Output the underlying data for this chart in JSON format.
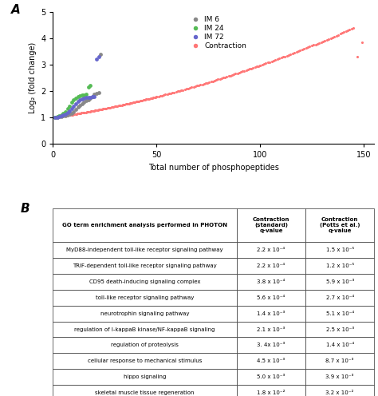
{
  "title_a": "A",
  "title_b": "B",
  "xlabel": "Total number of phosphopeptides",
  "ylabel": "Log₂ (fold change)",
  "xlim": [
    0,
    155
  ],
  "ylim": [
    0,
    5
  ],
  "xticks": [
    0,
    50,
    100,
    150
  ],
  "yticks": [
    0,
    1,
    2,
    3,
    4,
    5
  ],
  "colors": {
    "IM6": "#888888",
    "IM24": "#55bb55",
    "IM72": "#6666cc",
    "Contraction": "#ff7777"
  },
  "IM6_x": [
    1,
    2,
    3,
    4,
    5,
    6,
    7,
    8,
    9,
    10,
    11,
    12,
    13,
    14,
    15,
    16,
    17,
    18,
    19,
    20,
    21,
    22,
    23
  ],
  "IM6_y": [
    1.0,
    1.01,
    1.02,
    1.03,
    1.05,
    1.07,
    1.09,
    1.12,
    1.16,
    1.22,
    1.3,
    1.38,
    1.45,
    1.52,
    1.58,
    1.63,
    1.68,
    1.73,
    1.8,
    1.88,
    1.92,
    1.95,
    3.4
  ],
  "IM24_x": [
    1,
    2,
    3,
    4,
    5,
    6,
    7,
    8,
    9,
    10,
    11,
    12,
    13,
    14,
    15,
    16,
    17,
    18
  ],
  "IM24_y": [
    1.0,
    1.02,
    1.05,
    1.09,
    1.14,
    1.22,
    1.32,
    1.44,
    1.57,
    1.67,
    1.74,
    1.79,
    1.82,
    1.84,
    1.86,
    1.88,
    2.15,
    2.2
  ],
  "IM72_x": [
    1,
    2,
    3,
    4,
    5,
    6,
    7,
    8,
    9,
    10,
    11,
    12,
    13,
    14,
    15,
    16,
    17,
    18,
    19,
    20,
    21,
    22
  ],
  "IM72_y": [
    1.0,
    1.01,
    1.03,
    1.05,
    1.08,
    1.12,
    1.17,
    1.24,
    1.32,
    1.42,
    1.52,
    1.6,
    1.66,
    1.7,
    1.73,
    1.75,
    1.76,
    1.77,
    1.78,
    1.79,
    3.22,
    3.3
  ],
  "table_header": [
    "GO term enrichment analysis performed in PHOTON",
    "Contraction\n(standard)\nq-value",
    "Contraction\n(Potts et al.)\nq-value"
  ],
  "table_rows": [
    [
      "MyD88-independent toll-like receptor signaling pathway",
      "2.2 x 10⁻⁴",
      "1.5 x 10⁻⁵"
    ],
    [
      "TRIF-dependent toll-like receptor signaling pathway",
      "2.2 x 10⁻⁴",
      "1.2 x 10⁻⁵"
    ],
    [
      "CD95 death-inducing signaling complex",
      "3.8 x 10⁻⁴",
      "5.9 x 10⁻³"
    ],
    [
      "toll-like receptor signaling pathway",
      "5.6 x 10⁻⁴",
      "2.7 x 10⁻⁴"
    ],
    [
      "neurotrophin signaling pathway",
      "1.4 x 10⁻³",
      "5.1 x 10⁻⁴"
    ],
    [
      "regulation of I-kappaB kinase/NF-kappaB signaling",
      "2.1 x 10⁻³",
      "2.5 x 10⁻³"
    ],
    [
      "regulation of proteolysis",
      "3. 4x 10⁻³",
      "1.4 x 10⁻⁴"
    ],
    [
      "cellular response to mechanical stimulus",
      "4.5 x 10⁻³",
      "8.7 x 10⁻³"
    ],
    [
      "hippo signaling",
      "5.0 x 10⁻³",
      "3.9 x 10⁻³"
    ],
    [
      "skeletal muscle tissue regeneration",
      "1.8 x 10⁻²",
      "3.2 x 10⁻²"
    ]
  ]
}
